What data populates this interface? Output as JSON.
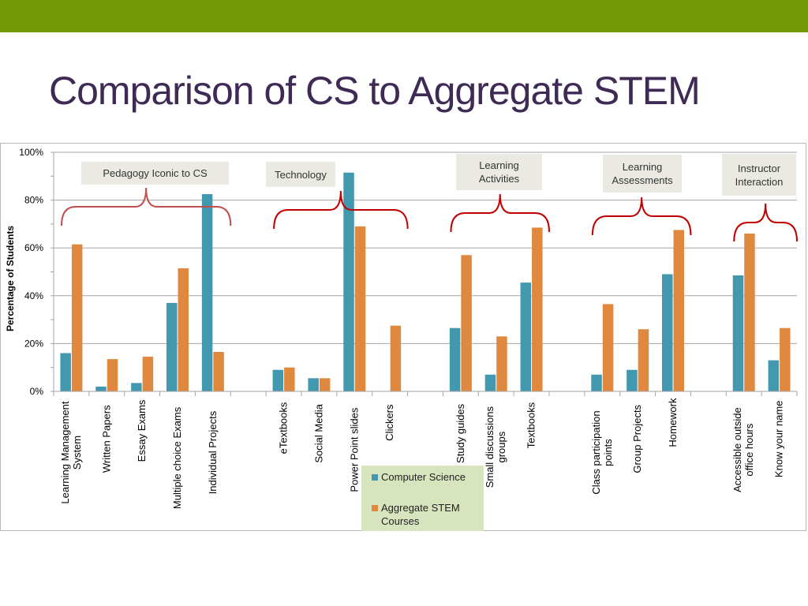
{
  "slide": {
    "title": "Comparison of CS to Aggregate STEM",
    "accent_color": "#739a06",
    "title_color": "#3f2a56"
  },
  "chart_data": {
    "type": "bar",
    "ylabel": "Percentage of Students",
    "ylim": [
      0,
      100
    ],
    "y_ticks": [
      "0%",
      "20%",
      "40%",
      "60%",
      "80%",
      "100%"
    ],
    "grid": true,
    "categories": [
      "Learning Management System",
      "Written Papers",
      "Essay Exams",
      "Multiple choice Exams",
      "Individual Projects",
      "",
      "eTextbooks",
      "Social Media",
      "Power Point slides",
      "Clickers",
      "",
      "Study guides",
      "Small discussions groups",
      "Textbooks",
      "",
      "Class participation points",
      "Group Projects",
      "Homework",
      "",
      "Accessible outside office hours",
      "Know your name"
    ],
    "series": [
      {
        "name": "Computer Science",
        "color": "#4198af",
        "values": [
          16,
          2,
          3.5,
          37,
          82.5,
          null,
          9,
          5.5,
          91.5,
          0,
          null,
          26.5,
          7,
          45.5,
          null,
          7,
          9,
          49,
          null,
          48.5,
          13
        ]
      },
      {
        "name": "Aggregate STEM Courses",
        "color": "#e0893e",
        "values": [
          61.5,
          13.5,
          14.5,
          51.5,
          16.5,
          null,
          10,
          5.5,
          69,
          27.5,
          null,
          57,
          23,
          68.5,
          null,
          36.5,
          26,
          67.5,
          null,
          66,
          26.5
        ]
      }
    ],
    "annotations": [
      {
        "label": "Pedagogy Iconic to CS"
      },
      {
        "label": "Technology"
      },
      {
        "label": "Learning Activities"
      },
      {
        "label": "Learning Assessments"
      },
      {
        "label": "Instructor Interaction"
      }
    ]
  }
}
